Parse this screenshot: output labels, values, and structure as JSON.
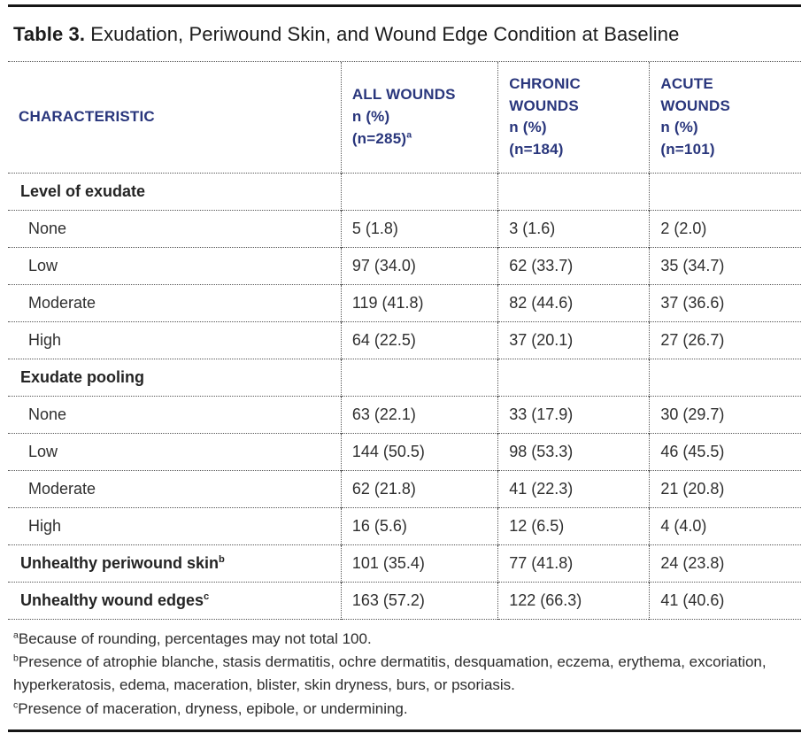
{
  "title": {
    "label": "Table 3.",
    "text": " Exudation, Periwound Skin, and Wound Edge Condition at Baseline"
  },
  "colors": {
    "header_navy": "#29367c",
    "body_text": "#2f2f2f",
    "rule_black": "#161616",
    "dotted_line": "#555555",
    "background": "#ffffff"
  },
  "table": {
    "header": {
      "characteristic": "CHARACTERISTIC",
      "col2": {
        "l1": "ALL WOUNDS",
        "l2": "n (%)",
        "l3": "(n=285)",
        "sup": "a"
      },
      "col3": {
        "l1": "CHRONIC",
        "l2": "WOUNDS",
        "l3": "n (%)",
        "l4": "(n=184)"
      },
      "col4": {
        "l1": "ACUTE",
        "l2": "WOUNDS",
        "l3": "n (%)",
        "l4": "(n=101)"
      }
    },
    "rows": [
      {
        "label": "Level of exudate",
        "type": "section",
        "values": [
          "",
          "",
          ""
        ]
      },
      {
        "label": "None",
        "type": "sub",
        "values": [
          "5 (1.8)",
          "3 (1.6)",
          "2 (2.0)"
        ]
      },
      {
        "label": "Low",
        "type": "sub",
        "values": [
          "97 (34.0)",
          "62 (33.7)",
          "35 (34.7)"
        ]
      },
      {
        "label": "Moderate",
        "type": "sub",
        "values": [
          "119 (41.8)",
          "82 (44.6)",
          "37 (36.6)"
        ]
      },
      {
        "label": "High",
        "type": "sub",
        "values": [
          "64 (22.5)",
          "37 (20.1)",
          "27 (26.7)"
        ]
      },
      {
        "label": "Exudate pooling",
        "type": "section",
        "values": [
          "",
          "",
          ""
        ]
      },
      {
        "label": "None",
        "type": "sub",
        "values": [
          "63 (22.1)",
          "33 (17.9)",
          "30 (29.7)"
        ]
      },
      {
        "label": "Low",
        "type": "sub",
        "values": [
          "144 (50.5)",
          "98 (53.3)",
          "46 (45.5)"
        ]
      },
      {
        "label": "Moderate",
        "type": "sub",
        "values": [
          "62 (21.8)",
          "41 (22.3)",
          "21 (20.8)"
        ]
      },
      {
        "label": "High",
        "type": "sub",
        "values": [
          "16 (5.6)",
          "12 (6.5)",
          "4 (4.0)"
        ]
      },
      {
        "label": "Unhealthy periwound skin",
        "sup": "b",
        "type": "bold",
        "values": [
          "101 (35.4)",
          "77 (41.8)",
          "24 (23.8)"
        ]
      },
      {
        "label": "Unhealthy wound edges",
        "sup": "c",
        "type": "bold",
        "values": [
          "163 (57.2)",
          "122 (66.3)",
          "41 (40.6)"
        ]
      }
    ]
  },
  "footnotes": [
    {
      "sup": "a",
      "text": "Because of rounding, percentages may not total 100."
    },
    {
      "sup": "b",
      "text": "Presence of atrophie blanche, stasis dermatitis, ochre dermatitis, desquamation, eczema, erythema, excoriation, hyperkeratosis, edema, maceration, blister, skin dryness, burs, or psoriasis."
    },
    {
      "sup": "c",
      "text": "Presence of maceration, dryness, epibole, or undermining."
    }
  ]
}
